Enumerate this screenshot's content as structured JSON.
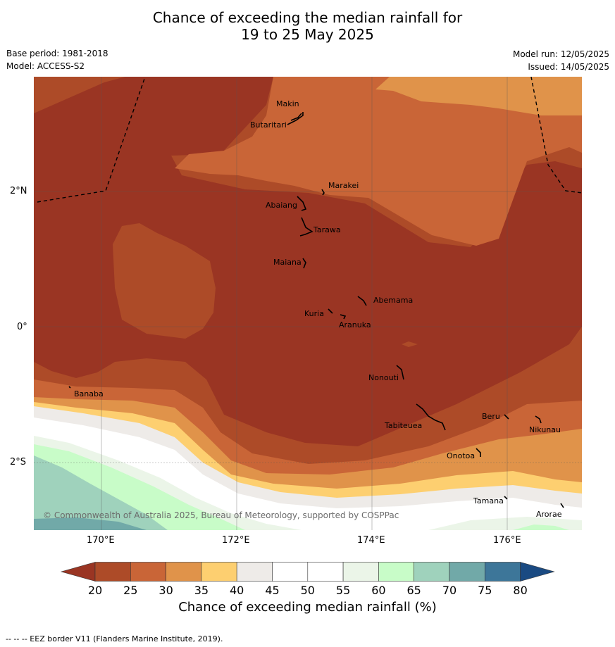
{
  "title_line1": "Chance of exceeding the median rainfall for",
  "title_line2": "19 to 25 May 2025",
  "base_period": "Base period: 1981-2018",
  "model": "Model: ACCESS-S2",
  "model_run": "Model run: 12/05/2025",
  "issued": "Issued: 14/05/2025",
  "lat_ticks": [
    "2°N",
    "0°",
    "2°S"
  ],
  "lon_ticks": [
    "170°E",
    "172°E",
    "174°E",
    "176°E"
  ],
  "places": [
    "Makin",
    "Butaritari",
    "Marakei",
    "Abaiang",
    "Tarawa",
    "Maiana",
    "Abemama",
    "Kuria",
    "Aranuka",
    "Nonouti",
    "Banaba",
    "Beru",
    "Nikunau",
    "Tabiteuea",
    "Onotoa",
    "Tamana",
    "Arorae"
  ],
  "copyright": "© Commonwealth of Australia 2025, Bureau of Meteorology, supported by COSPPac",
  "colorbar": {
    "ticks": [
      "20",
      "25",
      "30",
      "35",
      "40",
      "45",
      "50",
      "55",
      "60",
      "65",
      "70",
      "75",
      "80"
    ],
    "colors": [
      "#ad4b28",
      "#c96537",
      "#e0934a",
      "#fdcf70",
      "#eeebe8",
      "#ffffff",
      "#ffffff",
      "#ebf5e8",
      "#c8fcc8",
      "#9fd2bc",
      "#71a9a8",
      "#3d7699"
    ],
    "under_color": "#9a3523",
    "over_color": "#1a4a82",
    "label": "Chance of exceeding median rainfall (%)"
  },
  "footer": "-- -- -- EEZ border V11 (Flanders Marine Institute, 2019)."
}
